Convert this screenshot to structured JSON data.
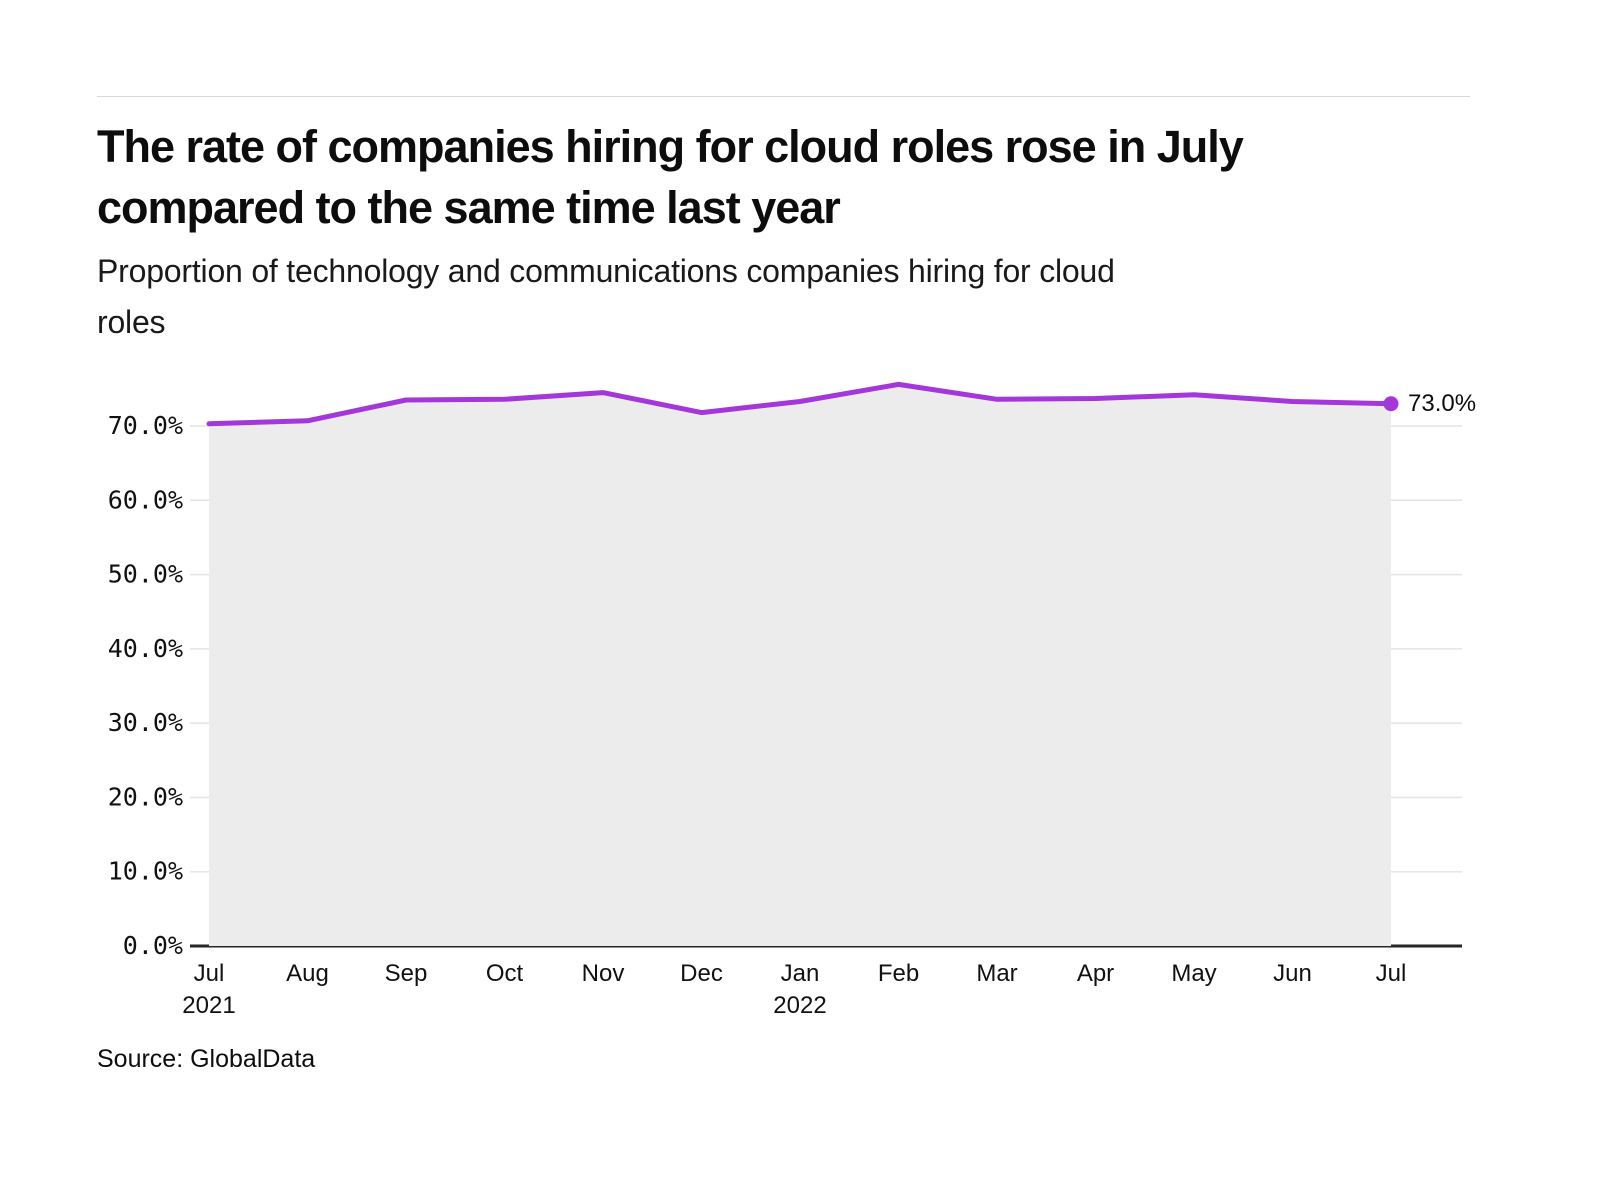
{
  "header": {
    "title": "The rate of companies hiring for cloud roles rose in July\ncompared to the same time last year",
    "subtitle": "Proportion of technology and communications companies hiring for cloud\nroles"
  },
  "footer": {
    "source": "Source: GlobalData"
  },
  "chart_data": {
    "type": "line",
    "title": "Proportion of technology and communications companies hiring for cloud roles",
    "categories": [
      "Jul",
      "Aug",
      "Sep",
      "Oct",
      "Nov",
      "Dec",
      "Jan",
      "Feb",
      "Mar",
      "Apr",
      "May",
      "Jun",
      "Jul"
    ],
    "year_labels": [
      {
        "category_index": 0,
        "label": "2021"
      },
      {
        "category_index": 6,
        "label": "2022"
      }
    ],
    "series": [
      {
        "name": "Proportion of companies hiring for cloud roles",
        "color": "#A437D9",
        "values": [
          70.3,
          70.7,
          73.5,
          73.6,
          74.5,
          71.8,
          73.3,
          75.6,
          73.6,
          73.7,
          74.2,
          73.3,
          73.0
        ]
      }
    ],
    "ytick_labels": [
      "0.0%",
      "10.0%",
      "20.0%",
      "30.0%",
      "40.0%",
      "50.0%",
      "60.0%",
      "70.0%"
    ],
    "ylim": [
      0,
      77
    ],
    "grid": true,
    "legend": "none",
    "end_label": "73.0%",
    "area_fill": "#ECECEC",
    "gridline_color": "#E4E4E4",
    "axis_color": "#262626"
  }
}
